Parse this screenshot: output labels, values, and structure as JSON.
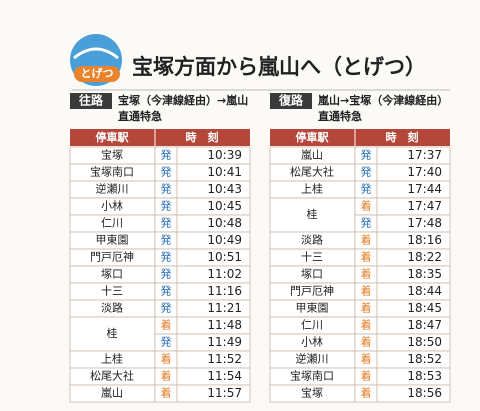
{
  "header": {
    "badge": "とげつ",
    "title": "宝塚方面から嵐山へ（とげつ）"
  },
  "columns": {
    "station": "停車駅",
    "time": "時　刻"
  },
  "tables": [
    {
      "label": "往路",
      "route": "宝塚（今津線経由）→嵐山",
      "train": "直通特急",
      "rows": [
        {
          "station": "宝塚",
          "times": [
            {
              "kind": "発",
              "time": "10:39"
            }
          ]
        },
        {
          "station": "宝塚南口",
          "times": [
            {
              "kind": "発",
              "time": "10:41"
            }
          ]
        },
        {
          "station": "逆瀬川",
          "times": [
            {
              "kind": "発",
              "time": "10:43"
            }
          ]
        },
        {
          "station": "小林",
          "times": [
            {
              "kind": "発",
              "time": "10:45"
            }
          ]
        },
        {
          "station": "仁川",
          "times": [
            {
              "kind": "発",
              "time": "10:48"
            }
          ]
        },
        {
          "station": "甲東園",
          "times": [
            {
              "kind": "発",
              "time": "10:49"
            }
          ]
        },
        {
          "station": "門戸厄神",
          "times": [
            {
              "kind": "発",
              "time": "10:51"
            }
          ]
        },
        {
          "station": "塚口",
          "times": [
            {
              "kind": "発",
              "time": "11:02"
            }
          ]
        },
        {
          "station": "十三",
          "times": [
            {
              "kind": "発",
              "time": "11:16"
            }
          ]
        },
        {
          "station": "淡路",
          "times": [
            {
              "kind": "発",
              "time": "11:21"
            }
          ]
        },
        {
          "station": "桂",
          "times": [
            {
              "kind": "着",
              "time": "11:48"
            },
            {
              "kind": "発",
              "time": "11:49"
            }
          ]
        },
        {
          "station": "上桂",
          "times": [
            {
              "kind": "着",
              "time": "11:52"
            }
          ]
        },
        {
          "station": "松尾大社",
          "times": [
            {
              "kind": "着",
              "time": "11:54"
            }
          ]
        },
        {
          "station": "嵐山",
          "times": [
            {
              "kind": "着",
              "time": "11:57"
            }
          ]
        }
      ]
    },
    {
      "label": "復路",
      "route": "嵐山→宝塚（今津線経由）",
      "train": "直通特急",
      "rows": [
        {
          "station": "嵐山",
          "times": [
            {
              "kind": "発",
              "time": "17:37"
            }
          ]
        },
        {
          "station": "松尾大社",
          "times": [
            {
              "kind": "発",
              "time": "17:40"
            }
          ]
        },
        {
          "station": "上桂",
          "times": [
            {
              "kind": "発",
              "time": "17:44"
            }
          ]
        },
        {
          "station": "桂",
          "times": [
            {
              "kind": "着",
              "time": "17:47"
            },
            {
              "kind": "発",
              "time": "17:48"
            }
          ]
        },
        {
          "station": "淡路",
          "times": [
            {
              "kind": "着",
              "time": "18:16"
            }
          ]
        },
        {
          "station": "十三",
          "times": [
            {
              "kind": "着",
              "time": "18:22"
            }
          ]
        },
        {
          "station": "塚口",
          "times": [
            {
              "kind": "着",
              "time": "18:35"
            }
          ]
        },
        {
          "station": "門戸厄神",
          "times": [
            {
              "kind": "着",
              "time": "18:44"
            }
          ]
        },
        {
          "station": "甲東園",
          "times": [
            {
              "kind": "着",
              "time": "18:45"
            }
          ]
        },
        {
          "station": "仁川",
          "times": [
            {
              "kind": "着",
              "time": "18:47"
            }
          ]
        },
        {
          "station": "小林",
          "times": [
            {
              "kind": "着",
              "time": "18:50"
            }
          ]
        },
        {
          "station": "逆瀬川",
          "times": [
            {
              "kind": "着",
              "time": "18:52"
            }
          ]
        },
        {
          "station": "宝塚南口",
          "times": [
            {
              "kind": "着",
              "time": "18:53"
            }
          ]
        },
        {
          "station": "宝塚",
          "times": [
            {
              "kind": "着",
              "time": "18:56"
            }
          ]
        }
      ]
    }
  ]
}
